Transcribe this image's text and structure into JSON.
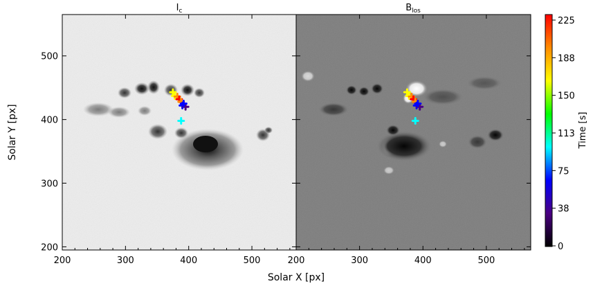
{
  "figure": {
    "colorbar_label": "Time [s]",
    "colorbar_ticks": [
      "225",
      "188",
      "150",
      "113",
      "75",
      "38",
      "0"
    ],
    "colorbar_colors": [
      "#ff0000",
      "#ff8c00",
      "#ffff00",
      "#00ff00",
      "#00ffff",
      "#0000ff",
      "#4b0082",
      "#000000"
    ],
    "shared_xlabel": "Solar X [px]"
  },
  "chart_data": [
    {
      "type": "scatter",
      "title": "I",
      "title_sub": "c",
      "xlabel": "",
      "ylabel": "Solar Y [px]",
      "xlim": [
        200,
        570
      ],
      "ylim": [
        195,
        565
      ],
      "x_ticks": [
        "200",
        "300",
        "400",
        "500"
      ],
      "y_ticks": [
        "200",
        "300",
        "400",
        "500"
      ],
      "background": "continuum intensity image (grayscale)",
      "points": [
        {
          "x": 375,
          "y": 443,
          "t": 150
        },
        {
          "x": 378,
          "y": 437,
          "t": 160
        },
        {
          "x": 382,
          "y": 436,
          "t": 200
        },
        {
          "x": 385,
          "y": 432,
          "t": 225
        },
        {
          "x": 388,
          "y": 428,
          "t": 190
        },
        {
          "x": 390,
          "y": 422,
          "t": 60
        },
        {
          "x": 395,
          "y": 420,
          "t": 40
        },
        {
          "x": 392,
          "y": 425,
          "t": 50
        },
        {
          "x": 388,
          "y": 398,
          "t": 100
        }
      ]
    },
    {
      "type": "scatter",
      "title": "B",
      "title_sub": "los",
      "xlabel": "",
      "ylabel": "",
      "xlim": [
        200,
        570
      ],
      "ylim": [
        195,
        565
      ],
      "x_ticks": [
        "200",
        "300",
        "400",
        "500"
      ],
      "y_ticks": [],
      "background": "line-of-sight magnetogram (grayscale)",
      "points": [
        {
          "x": 375,
          "y": 443,
          "t": 150
        },
        {
          "x": 378,
          "y": 437,
          "t": 160
        },
        {
          "x": 382,
          "y": 436,
          "t": 200
        },
        {
          "x": 385,
          "y": 432,
          "t": 225
        },
        {
          "x": 388,
          "y": 428,
          "t": 190
        },
        {
          "x": 390,
          "y": 422,
          "t": 60
        },
        {
          "x": 395,
          "y": 420,
          "t": 40
        },
        {
          "x": 392,
          "y": 425,
          "t": 50
        },
        {
          "x": 388,
          "y": 398,
          "t": 100
        }
      ]
    }
  ]
}
